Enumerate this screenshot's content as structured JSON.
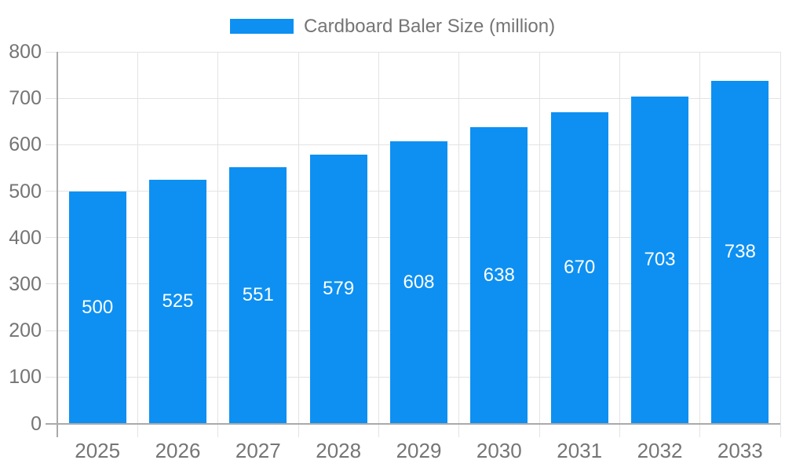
{
  "legend": {
    "label": "Cardboard Baler Size (million)",
    "swatch_color": "#0D90F2"
  },
  "chart_data": {
    "type": "bar",
    "title": "Cardboard Baler Size (million)",
    "categories": [
      "2025",
      "2026",
      "2027",
      "2028",
      "2029",
      "2030",
      "2031",
      "2032",
      "2033"
    ],
    "values": [
      500,
      525,
      551,
      579,
      608,
      638,
      670,
      703,
      738
    ],
    "series_name": "Cardboard Baler Size (million)",
    "xlabel": "",
    "ylabel": "",
    "ylim": [
      0,
      800
    ],
    "ytick_step": 100,
    "yticks": [
      0,
      100,
      200,
      300,
      400,
      500,
      600,
      700,
      800
    ],
    "grid": true,
    "legend_position": "top",
    "value_label_position": "inside-center",
    "colors": {
      "bar": "#0D90F2",
      "bar_label": "#FFFFFF",
      "axis_text": "#757575",
      "axis_line": "#AAAAAA",
      "grid_line": "#E3E3E3",
      "background": "#FFFFFF"
    }
  }
}
